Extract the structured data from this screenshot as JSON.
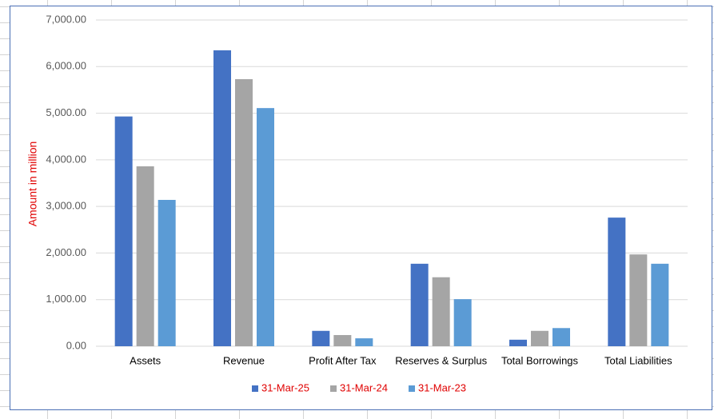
{
  "chart_data": {
    "type": "bar",
    "y_label": "Amount in million",
    "categories": [
      "Assets",
      "Revenue",
      "Profit After Tax",
      "Reserves & Surplus",
      "Total Borrowings",
      "Total Liabilities"
    ],
    "series": [
      {
        "name": "31-Mar-25",
        "color": "#4472c4",
        "values": [
          4930,
          6350,
          330,
          1770,
          140,
          2760
        ]
      },
      {
        "name": "31-Mar-24",
        "color": "#a5a5a5",
        "values": [
          3860,
          5730,
          240,
          1480,
          330,
          1970
        ]
      },
      {
        "name": "31-Mar-23",
        "color": "#5b9bd5",
        "values": [
          3140,
          5110,
          170,
          1010,
          390,
          1770
        ]
      }
    ],
    "ylim": [
      0,
      7000
    ],
    "yticks": [
      {
        "value": 0,
        "label": "0.00"
      },
      {
        "value": 1000,
        "label": "1,000.00"
      },
      {
        "value": 2000,
        "label": "2,000.00"
      },
      {
        "value": 3000,
        "label": "3,000.00"
      },
      {
        "value": 4000,
        "label": "4,000.00"
      },
      {
        "value": 5000,
        "label": "5,000.00"
      },
      {
        "value": 6000,
        "label": "6,000.00"
      },
      {
        "value": 7000,
        "label": "7,000.00"
      }
    ],
    "grid": true,
    "legend": "bottom"
  }
}
